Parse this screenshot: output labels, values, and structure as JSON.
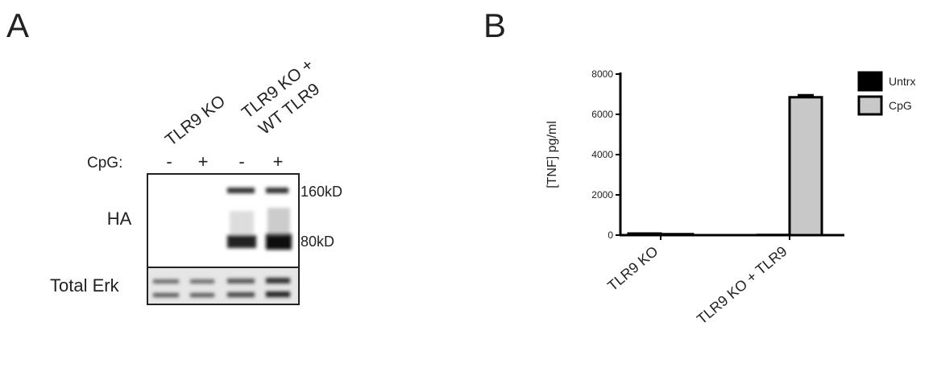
{
  "panel_a": {
    "letter": "A",
    "lanes": {
      "group_1": "TLR9 KO",
      "group_2": [
        "TLR9 KO +",
        "WT TLR9"
      ]
    },
    "treatment_label": "CpG:",
    "treatments": [
      "-",
      "+",
      "-",
      "+"
    ],
    "rows": [
      "HA",
      "Total Erk"
    ],
    "markers": [
      "160kD",
      "80kD"
    ]
  },
  "chart_data": {
    "type": "bar",
    "panel_letter": "B",
    "ylabel": "[TNF] pg/ml",
    "categories": [
      "TLR9 KO",
      "TLR9 KO + TLR9"
    ],
    "series": [
      {
        "name": "Untrx",
        "color": "#000000",
        "values": [
          80,
          10
        ]
      },
      {
        "name": "CpG",
        "color": "#c8c8c8",
        "values": [
          50,
          6850
        ],
        "errors": [
          null,
          100
        ]
      }
    ],
    "ylim": [
      0,
      8000
    ],
    "yticks": [
      0,
      2000,
      4000,
      6000,
      8000
    ],
    "legend": "right"
  }
}
